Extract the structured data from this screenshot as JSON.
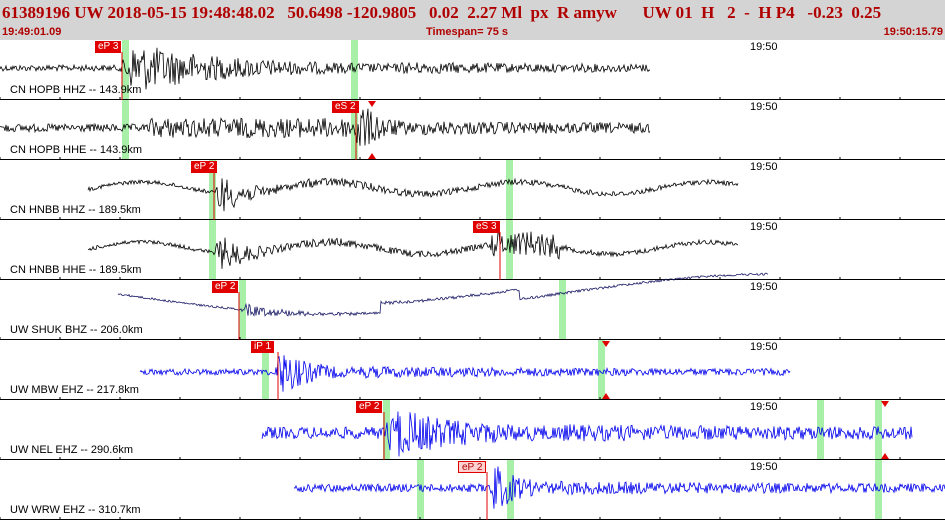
{
  "header": {
    "title_line": "61389196 UW 2018-05-15 19:48:48.02   50.6498 -120.9805   0.02  2.27 Ml  px  R amyw      UW 01  H   2  -  H P4   -0.23  0.25",
    "start_time": "19:49:01.09",
    "timespan": "Timespan=  75 s",
    "end_time": "19:50:15.79"
  },
  "colors": {
    "header_bg": "#d4d4d4",
    "header_text": "#b00000",
    "pick_red": "#e00000",
    "green_marker": "#a8f0a8",
    "trace_black": "#000000",
    "trace_navy": "#1a1a66",
    "trace_blue": "#0000ee"
  },
  "panels": [
    {
      "station": "CN HOPB HHZ -- 143.9km",
      "time_label": "19:50",
      "trace_color": "black",
      "picks": [
        {
          "label": "eP 3",
          "style": "red"
        }
      ]
    },
    {
      "station": "CN HOPB HHE -- 143.9km",
      "time_label": "19:50",
      "trace_color": "black",
      "picks": [
        {
          "label": "eS 2",
          "style": "red"
        }
      ]
    },
    {
      "station": "CN HNBB HHZ -- 189.5km",
      "time_label": "19:50",
      "trace_color": "black",
      "picks": [
        {
          "label": "eP 2",
          "style": "red"
        }
      ]
    },
    {
      "station": "CN HNBB HHE -- 189.5km",
      "time_label": "19:50",
      "trace_color": "black",
      "picks": [
        {
          "label": "eS 3",
          "style": "red"
        }
      ]
    },
    {
      "station": "UW SHUK BHZ -- 206.0km",
      "time_label": "19:50",
      "trace_color": "navy",
      "picks": [
        {
          "label": "eP 2",
          "style": "red"
        }
      ]
    },
    {
      "station": "UW MBW EHZ -- 217.8km",
      "time_label": "19:50",
      "trace_color": "blue",
      "picks": [
        {
          "label": "iP 1",
          "style": "red"
        }
      ]
    },
    {
      "station": "UW NEL EHZ -- 290.6km",
      "time_label": "19:50",
      "trace_color": "blue",
      "picks": [
        {
          "label": "eP 2",
          "style": "red"
        }
      ]
    },
    {
      "station": "UW WRW EHZ -- 310.7km",
      "time_label": "19:50",
      "trace_color": "blue",
      "picks": [
        {
          "label": "eP 2",
          "style": "pale"
        }
      ]
    }
  ]
}
